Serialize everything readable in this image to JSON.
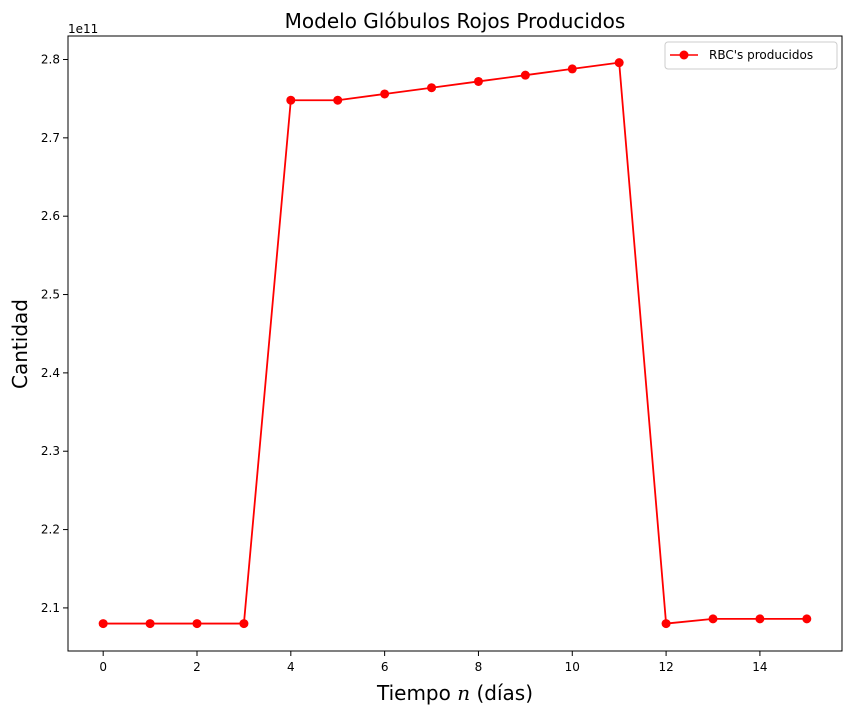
{
  "chart_data": {
    "type": "line",
    "title": "Modelo Glóbulos Rojos Producidos",
    "xlabel_main": "Tiempo ",
    "xlabel_var": "n",
    "xlabel_tail": " (días)",
    "ylabel": "Cantidad",
    "y_offset_text": "1e11",
    "xlim": [
      -0.75,
      15.75
    ],
    "ylim": [
      2.045,
      2.83
    ],
    "x_ticks": [
      0,
      2,
      4,
      6,
      8,
      10,
      12,
      14
    ],
    "x_tick_labels": [
      "0",
      "2",
      "4",
      "6",
      "8",
      "10",
      "12",
      "14"
    ],
    "y_ticks": [
      2.1,
      2.2,
      2.3,
      2.4,
      2.5,
      2.6,
      2.7,
      2.8
    ],
    "y_tick_labels": [
      "2.1",
      "2.2",
      "2.3",
      "2.4",
      "2.5",
      "2.6",
      "2.7",
      "2.8"
    ],
    "grid": false,
    "legend_position": "top-right",
    "series": [
      {
        "name": "RBC's producidos",
        "color": "#ff0000",
        "marker": "circle",
        "x": [
          0,
          1,
          2,
          3,
          4,
          5,
          6,
          7,
          8,
          9,
          10,
          11,
          12,
          13,
          14,
          15
        ],
        "y": [
          2.08,
          2.08,
          2.08,
          2.08,
          2.748,
          2.748,
          2.756,
          2.764,
          2.772,
          2.78,
          2.788,
          2.796,
          2.08,
          2.086,
          2.086,
          2.086
        ]
      }
    ]
  }
}
